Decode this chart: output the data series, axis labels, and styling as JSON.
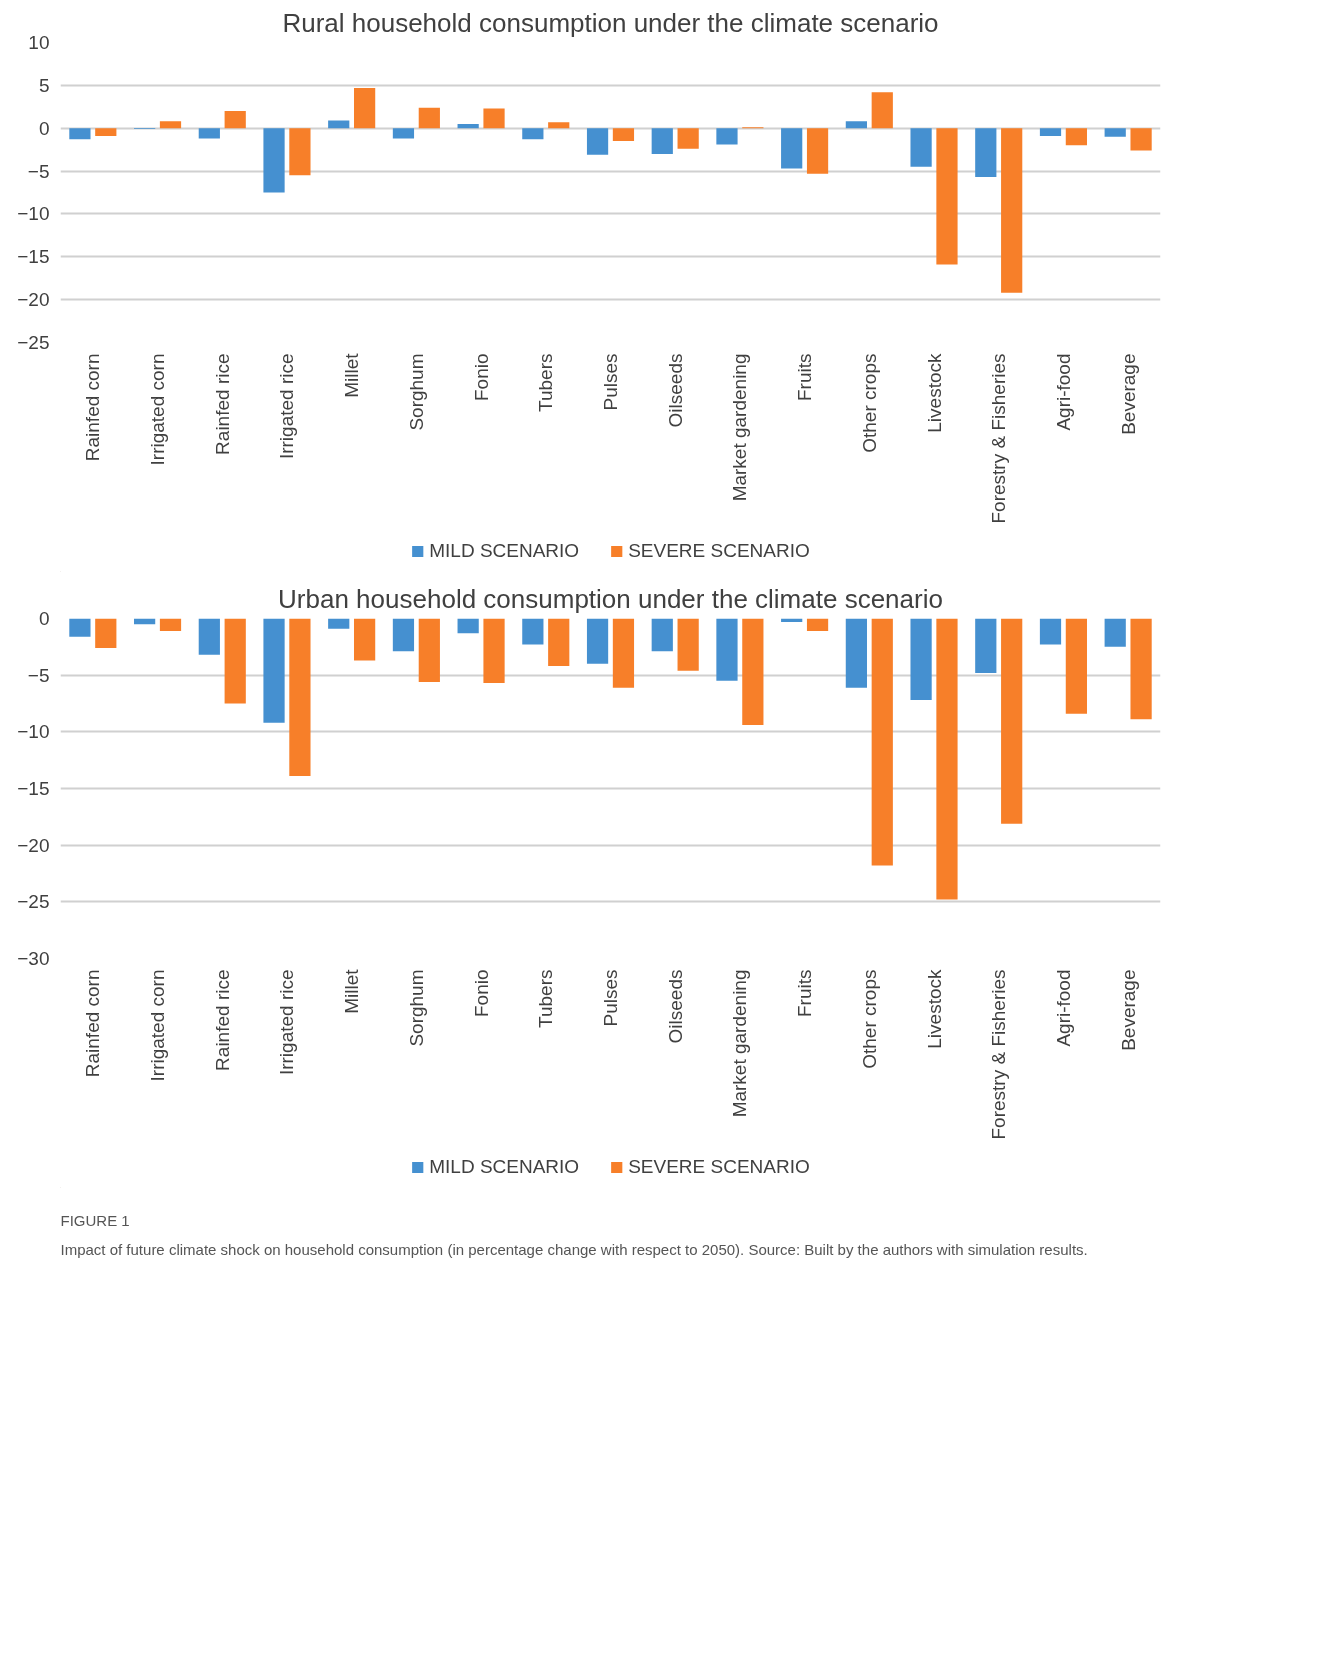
{
  "chart_data": [
    {
      "type": "bar",
      "title": "Rural household consumption under the climate scenario",
      "categories": [
        "Rainfed corn",
        "Irrigated corn",
        "Rainfed rice",
        "Irrigated rice",
        "Millet",
        "Sorghum",
        "Fonio",
        "Tubers",
        "Pulses",
        "Oilseeds",
        "Market gardening",
        "Fruits",
        "Other crops",
        "Livestock",
        "Forestry & Fisheries",
        "Agri-food",
        "Beverage"
      ],
      "series": [
        {
          "name": "MILD SCENARIO",
          "color": "#4590d0",
          "values": [
            -1.3,
            -0.1,
            -1.2,
            -7.5,
            0.9,
            -1.2,
            0.5,
            -1.3,
            -3.1,
            -3.0,
            -1.9,
            -4.7,
            0.8,
            -4.5,
            -5.7,
            -0.9,
            -1.0
          ]
        },
        {
          "name": "SEVERE SCENARIO",
          "color": "#f77f29",
          "values": [
            -0.9,
            0.8,
            2.0,
            -5.5,
            4.7,
            2.4,
            2.3,
            0.7,
            -1.5,
            -2.4,
            0.1,
            -5.3,
            4.2,
            -15.9,
            -19.2,
            -2.0,
            -2.6
          ]
        }
      ],
      "ylim": [
        -25,
        10
      ],
      "yticks": [
        -25,
        -20,
        -15,
        -10,
        -5,
        0,
        5,
        10
      ],
      "grid": "y",
      "legend": "bottom"
    },
    {
      "type": "bar",
      "title": "Urban household consumption under the climate scenario",
      "categories": [
        "Rainfed corn",
        "Irrigated corn",
        "Rainfed rice",
        "Irrigated rice",
        "Millet",
        "Sorghum",
        "Fonio",
        "Tubers",
        "Pulses",
        "Oilseeds",
        "Market gardening",
        "Fruits",
        "Other crops",
        "Livestock",
        "Forestry & Fisheries",
        "Agri-food",
        "Beverage"
      ],
      "series": [
        {
          "name": "MILD SCENARIO",
          "color": "#4590d0",
          "values": [
            -1.6,
            -0.5,
            -3.2,
            -9.2,
            -0.9,
            -2.9,
            -1.3,
            -2.3,
            -4.0,
            -2.9,
            -5.5,
            -0.3,
            -6.1,
            -7.2,
            -4.8,
            -2.3,
            -2.5
          ]
        },
        {
          "name": "SEVERE SCENARIO",
          "color": "#f77f29",
          "values": [
            -2.6,
            -1.1,
            -7.5,
            -13.9,
            -3.7,
            -5.6,
            -5.7,
            -4.2,
            -6.1,
            -4.6,
            -9.4,
            -1.1,
            -21.8,
            -24.8,
            -18.1,
            -8.4,
            -8.9
          ]
        }
      ],
      "ylim": [
        -30,
        0
      ],
      "yticks": [
        -30,
        -25,
        -20,
        -15,
        -10,
        -5,
        0
      ],
      "grid": "y",
      "legend": "bottom",
      "annotations": [
        "FIGURE 1",
        "Impact of future climate shock on household consumption (in percentage change with respect to 2050). Source: Built by the authors with simulation results."
      ]
    }
  ]
}
